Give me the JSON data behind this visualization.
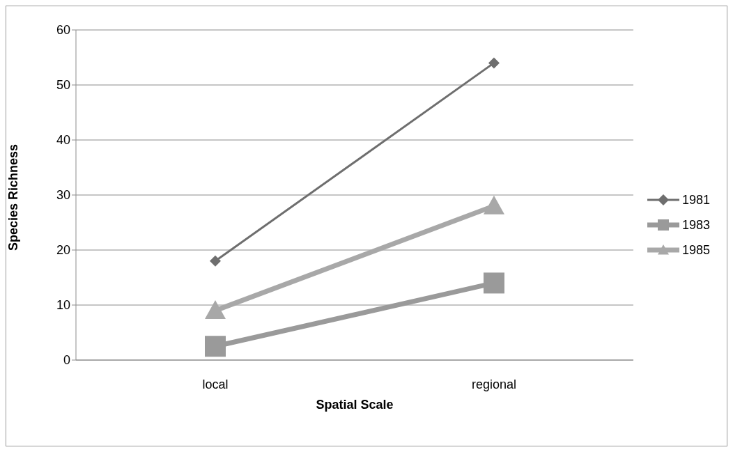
{
  "chart_data": {
    "type": "line",
    "xlabel": "Spatial Scale",
    "ylabel": "Species Richness",
    "categories": [
      "local",
      "regional"
    ],
    "series": [
      {
        "name": "1981",
        "color": "#6e6e6e",
        "marker": "diamond",
        "values": [
          18,
          54
        ]
      },
      {
        "name": "1983",
        "color": "#9a9a9a",
        "marker": "square",
        "values": [
          2.5,
          14
        ]
      },
      {
        "name": "1985",
        "color": "#a8a8a8",
        "marker": "triangle",
        "values": [
          9,
          28
        ]
      }
    ],
    "ylim": [
      0,
      60
    ],
    "yticks": [
      0,
      10,
      20,
      30,
      40,
      50,
      60
    ],
    "grid": "y",
    "legend": "right"
  }
}
